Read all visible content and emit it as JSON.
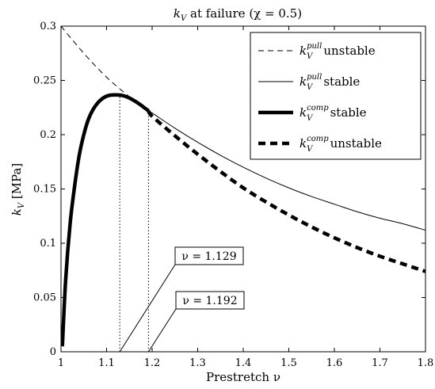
{
  "chart_data": {
    "type": "line",
    "title": "k_V at failure (χ = 0.5)",
    "title_parts": {
      "main": "k",
      "sub": "V",
      "rest": " at failure (χ = 0.5)"
    },
    "xlabel": "Prestretch ν",
    "ylabel": "k_V [MPa]",
    "ylabel_parts": {
      "main": "k",
      "sub": "V",
      "rest": " [MPa]"
    },
    "xlim": [
      1,
      1.8
    ],
    "ylim": [
      0,
      0.3
    ],
    "xticks": [
      1,
      1.1,
      1.2,
      1.3,
      1.4,
      1.5,
      1.6,
      1.7,
      1.8
    ],
    "xtick_labels": [
      "1",
      "1.1",
      "1.2",
      "1.3",
      "1.4",
      "1.5",
      "1.6",
      "1.7",
      "1.8"
    ],
    "yticks": [
      0,
      0.05,
      0.1,
      0.15,
      0.2,
      0.25,
      0.3
    ],
    "ytick_labels": [
      "0",
      "0.05",
      "0.1",
      "0.15",
      "0.2",
      "0.25",
      "0.3"
    ],
    "grid": false,
    "legend_position": "top-right",
    "series": [
      {
        "name": "k_V^pull unstable",
        "label_main": "k",
        "label_sub": "V",
        "label_sup": "pull",
        "label_text": "unstable",
        "style": "dashed-thin",
        "x": [
          1.0,
          1.05,
          1.1,
          1.15,
          1.192
        ],
        "y": [
          0.3,
          0.275,
          0.253,
          0.235,
          0.222
        ]
      },
      {
        "name": "k_V^pull stable",
        "label_main": "k",
        "label_sub": "V",
        "label_sup": "pull",
        "label_text": "stable",
        "style": "solid-thin",
        "x": [
          1.192,
          1.2,
          1.25,
          1.3,
          1.35,
          1.4,
          1.45,
          1.5,
          1.55,
          1.6,
          1.65,
          1.7,
          1.75,
          1.8
        ],
        "y": [
          0.222,
          0.22,
          0.206,
          0.193,
          0.181,
          0.17,
          0.16,
          0.151,
          0.143,
          0.136,
          0.129,
          0.123,
          0.118,
          0.112
        ]
      },
      {
        "name": "k_V^comp stable",
        "label_main": "k",
        "label_sub": "V",
        "label_sup": "comp",
        "label_text": "stable",
        "style": "solid-thick",
        "x": [
          1.003,
          1.01,
          1.02,
          1.03,
          1.04,
          1.05,
          1.06,
          1.07,
          1.08,
          1.09,
          1.1,
          1.11,
          1.12,
          1.129,
          1.14,
          1.15,
          1.16,
          1.17,
          1.18,
          1.192
        ],
        "y": [
          0.005,
          0.065,
          0.118,
          0.153,
          0.181,
          0.2,
          0.214,
          0.223,
          0.229,
          0.233,
          0.2355,
          0.2365,
          0.2367,
          0.2365,
          0.2355,
          0.2338,
          0.2315,
          0.2288,
          0.2258,
          0.222
        ]
      },
      {
        "name": "k_V^comp unstable",
        "label_main": "k",
        "label_sub": "V",
        "label_sup": "comp",
        "label_text": "unstable",
        "style": "dashed-thick",
        "x": [
          1.192,
          1.2,
          1.25,
          1.3,
          1.35,
          1.4,
          1.45,
          1.5,
          1.55,
          1.6,
          1.65,
          1.7,
          1.75,
          1.8
        ],
        "y": [
          0.222,
          0.217,
          0.199,
          0.182,
          0.166,
          0.151,
          0.138,
          0.126,
          0.115,
          0.105,
          0.096,
          0.088,
          0.081,
          0.074
        ]
      }
    ],
    "vlines": [
      {
        "x": 1.129,
        "y_top": 0.2365
      },
      {
        "x": 1.192,
        "y_top": 0.222
      }
    ],
    "annotations": [
      {
        "text": "ν = 1.129",
        "target_x": 1.129
      },
      {
        "text": "ν = 1.192",
        "target_x": 1.192
      }
    ]
  }
}
